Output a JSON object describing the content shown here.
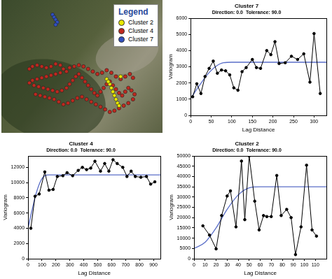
{
  "chart_data": [
    {
      "type": "scatter",
      "legend": "top-right",
      "legend_title": "Legend",
      "tick_labels": false,
      "xlim": [
        0,
        100
      ],
      "ylim": [
        0,
        100
      ],
      "series": [
        {
          "name": "Cluster 2",
          "color": "#e8e800",
          "marker": "circle",
          "x": [
            66,
            68,
            69,
            70,
            71,
            72,
            73,
            74,
            67,
            75
          ],
          "values": [
            40,
            36,
            33,
            30,
            27,
            24,
            21,
            19,
            38,
            42
          ]
        },
        {
          "name": "Cluster 4",
          "color": "#c0281e",
          "marker": "circle",
          "x": [
            16,
            18,
            21,
            24,
            27,
            30,
            33,
            36,
            38,
            36,
            33,
            30,
            27,
            24,
            21,
            18,
            16,
            19,
            22,
            25,
            28,
            31,
            34,
            37,
            40,
            42,
            44,
            46,
            48,
            50,
            52,
            54,
            56,
            58,
            60,
            62,
            64,
            66,
            68,
            70,
            72,
            74,
            76,
            78,
            80,
            82,
            84,
            83,
            80,
            77,
            74,
            71,
            68,
            65,
            62,
            59,
            56,
            53,
            50,
            47,
            44,
            41,
            38,
            35,
            32,
            29,
            26,
            23,
            20,
            40,
            42,
            45,
            48,
            51,
            54,
            57,
            60,
            63,
            66,
            69,
            72,
            75,
            78,
            81,
            83
          ],
          "values": [
            48,
            50,
            51,
            50,
            49,
            50,
            52,
            51,
            48,
            45,
            44,
            43,
            42,
            41,
            40,
            39,
            37,
            35,
            34,
            33,
            32,
            31,
            30,
            31,
            33,
            36,
            39,
            42,
            44,
            41,
            38,
            35,
            32,
            29,
            27,
            30,
            33,
            36,
            38,
            35,
            32,
            29,
            27,
            30,
            33,
            31,
            28,
            24,
            21,
            19,
            17,
            15,
            14,
            16,
            18,
            20,
            22,
            24,
            26,
            25,
            23,
            21,
            20,
            22,
            24,
            25,
            26,
            27,
            28,
            46,
            49,
            50,
            51,
            50,
            48,
            46,
            44,
            45,
            47,
            45,
            42,
            40,
            42,
            44,
            41
          ]
        },
        {
          "name": "Cluster 7",
          "color": "#3050c0",
          "marker": "circle",
          "x": [
            31,
            32,
            33,
            34,
            33
          ],
          "values": [
            91,
            89,
            87,
            85,
            83
          ]
        }
      ]
    },
    {
      "type": "line",
      "title": "Cluster 7",
      "subtitle": "Direction: 0.0  Tolerance: 90.0",
      "x_label": "Lag Distance",
      "y_label": "Variogram",
      "grid": false,
      "xlim": [
        0,
        330
      ],
      "xticks": [
        0,
        50,
        100,
        150,
        200,
        250,
        300
      ],
      "ylim": [
        0,
        6000
      ],
      "yticks": [
        0,
        1000,
        2000,
        3000,
        4000,
        5000,
        6000
      ],
      "series": [
        {
          "color": "#000000",
          "marker": "circle",
          "line_style": "solid",
          "x": [
            5,
            15,
            25,
            35,
            45,
            55,
            65,
            75,
            85,
            95,
            105,
            115,
            125,
            135,
            150,
            160,
            170,
            185,
            195,
            205,
            215,
            230,
            245,
            260,
            275,
            290,
            300,
            315
          ],
          "values": [
            1150,
            1950,
            1350,
            2400,
            2900,
            3350,
            2600,
            2800,
            2750,
            2500,
            1700,
            1550,
            2700,
            2950,
            3450,
            2950,
            2900,
            4000,
            3750,
            4550,
            3200,
            3250,
            3650,
            3450,
            3800,
            2050,
            5050,
            1350
          ]
        },
        {
          "color": "#5a6ec8",
          "marker": "none",
          "line_style": "smooth",
          "x": [
            0,
            20,
            40,
            60,
            80,
            100,
            330
          ],
          "values": [
            1050,
            1800,
            2500,
            3000,
            3250,
            3280,
            3280
          ]
        }
      ]
    },
    {
      "type": "line",
      "title": "Cluster 4",
      "subtitle": "Direction: 0.0  Tolerance: 90.0",
      "x_label": "Lag Distance",
      "y_label": "Variogram",
      "grid": false,
      "xlim": [
        0,
        950
      ],
      "xticks": [
        0,
        100,
        200,
        300,
        400,
        500,
        600,
        700,
        800,
        900
      ],
      "ylim": [
        0,
        13500
      ],
      "yticks": [
        0,
        2000,
        4000,
        6000,
        8000,
        10000,
        12000
      ],
      "series": [
        {
          "color": "#000000",
          "marker": "circle",
          "line_style": "solid",
          "x": [
            20,
            50,
            80,
            120,
            150,
            180,
            210,
            250,
            280,
            320,
            360,
            390,
            420,
            450,
            480,
            520,
            550,
            580,
            610,
            640,
            680,
            710,
            740,
            770,
            810,
            850,
            880,
            910
          ],
          "values": [
            4000,
            8200,
            8500,
            11400,
            9000,
            9100,
            10800,
            10900,
            11300,
            10900,
            11600,
            12000,
            11700,
            11900,
            12800,
            11500,
            12500,
            11500,
            13000,
            12500,
            12000,
            10800,
            11500,
            10800,
            10700,
            10800,
            9800,
            10100
          ]
        },
        {
          "color": "#5a6ec8",
          "marker": "none",
          "line_style": "smooth",
          "x": [
            0,
            30,
            60,
            90,
            120,
            150,
            950
          ],
          "values": [
            4000,
            6500,
            8700,
            10200,
            10900,
            11000,
            11000
          ]
        }
      ]
    },
    {
      "type": "line",
      "title": "Cluster 2",
      "subtitle": "Direction: 0.0  Tolerance: 90.0",
      "x_label": "Lag Distance",
      "y_label": "Variogram",
      "grid": false,
      "xlim": [
        0,
        120
      ],
      "xticks": [
        0,
        10,
        20,
        30,
        40,
        50,
        60,
        70,
        80,
        90,
        100,
        110
      ],
      "ylim": [
        0,
        50000
      ],
      "yticks": [
        0,
        5000,
        10000,
        15000,
        20000,
        25000,
        30000,
        35000,
        40000,
        45000,
        50000
      ],
      "series": [
        {
          "color": "#000000",
          "marker": "circle",
          "line_style": "solid",
          "x": [
            8,
            14,
            20,
            25,
            30,
            33,
            38,
            43,
            46,
            50,
            55,
            59,
            63,
            66,
            70,
            75,
            79,
            84,
            88,
            92,
            97,
            102,
            107,
            111
          ],
          "values": [
            16000,
            11500,
            4800,
            21000,
            30500,
            33000,
            15500,
            47500,
            19000,
            50000,
            28000,
            14000,
            21000,
            20500,
            20500,
            40500,
            21000,
            24000,
            20000,
            2000,
            15500,
            45500,
            14000,
            11000
          ]
        },
        {
          "color": "#5a6ec8",
          "marker": "none",
          "line_style": "smooth",
          "x": [
            0,
            10,
            20,
            30,
            40,
            50,
            60,
            120
          ],
          "values": [
            5000,
            8000,
            15000,
            24000,
            31000,
            34500,
            35000,
            35000
          ]
        }
      ]
    }
  ]
}
